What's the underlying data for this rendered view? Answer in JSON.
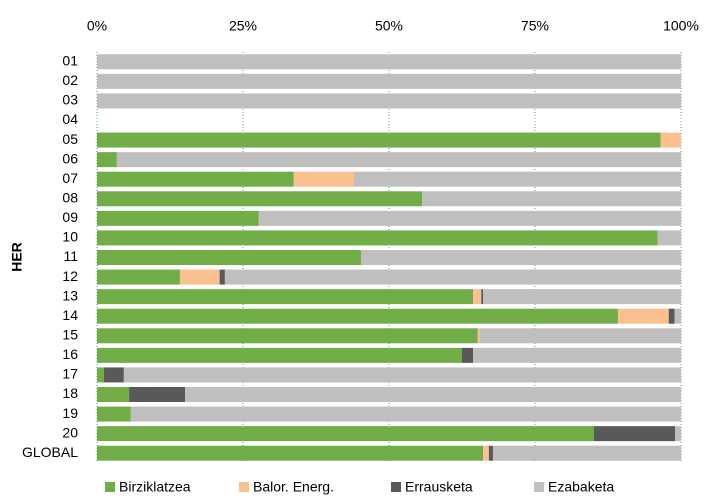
{
  "chart_data": {
    "type": "stacked_bar_horizontal",
    "y_label": "HER",
    "categories": [
      "01",
      "02",
      "03",
      "04",
      "05",
      "06",
      "07",
      "08",
      "09",
      "10",
      "11",
      "12",
      "13",
      "14",
      "15",
      "16",
      "17",
      "18",
      "19",
      "20",
      "GLOBAL"
    ],
    "series": [
      {
        "name": "Birziklatzea",
        "color": "#70ad47",
        "values": [
          0,
          0,
          0,
          0,
          96.5,
          3.4,
          33.7,
          55.7,
          27.7,
          96,
          45.2,
          14.2,
          64.4,
          89.2,
          65.2,
          62.5,
          1.2,
          5.5,
          5.8,
          85.1,
          66.1
        ]
      },
      {
        "name": "Balor. Energ.",
        "color": "#fac090",
        "values": [
          0,
          0,
          0,
          0,
          3.5,
          0,
          10.3,
          0,
          0,
          0,
          0,
          6.8,
          1.4,
          8.7,
          0.3,
          0,
          0,
          0,
          0,
          0,
          1
        ]
      },
      {
        "name": "Errausketa",
        "color": "#595959",
        "values": [
          0,
          0,
          0,
          0,
          0,
          0,
          0,
          0,
          0,
          0,
          0,
          0.9,
          0.3,
          1,
          0,
          1.9,
          3.4,
          9.6,
          0,
          13.9,
          0.7
        ]
      },
      {
        "name": "Ezabaketa",
        "color": "#bfbfbf",
        "values": [
          100,
          100,
          100,
          0,
          0,
          96.6,
          56,
          44.3,
          72.3,
          4,
          54.8,
          78.1,
          33.9,
          1.1,
          34.5,
          35.6,
          95.4,
          84.9,
          94.2,
          1,
          32.2
        ]
      }
    ],
    "xlim": [
      0,
      100
    ],
    "xticks": [
      {
        "value": 0,
        "label": "0%"
      },
      {
        "value": 25,
        "label": "25%"
      },
      {
        "value": 50,
        "label": "50%"
      },
      {
        "value": 75,
        "label": "75%"
      },
      {
        "value": 100,
        "label": "100%"
      }
    ],
    "grid": true,
    "legend": "bottom"
  }
}
